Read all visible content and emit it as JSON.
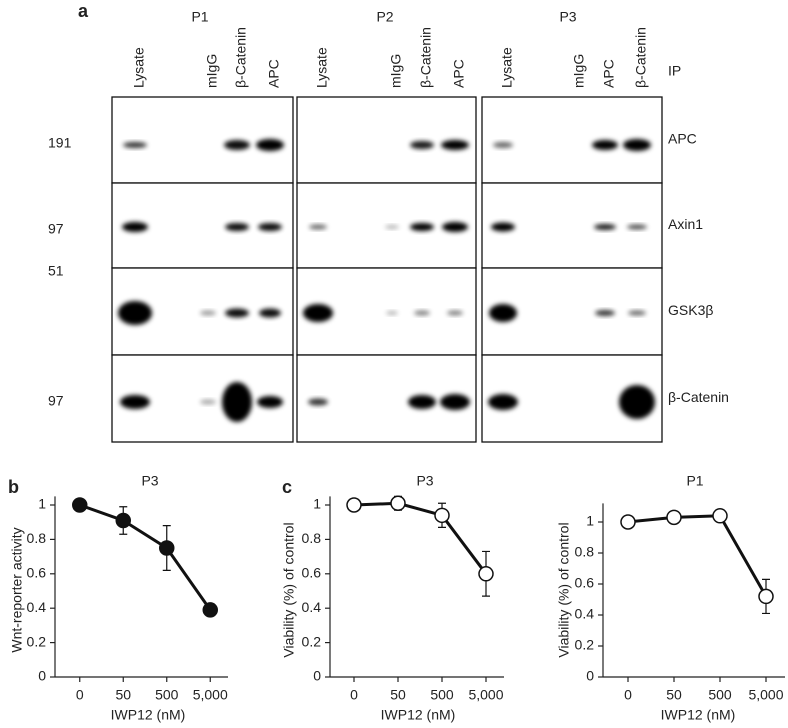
{
  "panel_a": {
    "label": "a",
    "ip_label": "IP",
    "groups": [
      {
        "name": "P1",
        "lanes": [
          "Lysate",
          "mIgG",
          "β-Catenin",
          "APC"
        ]
      },
      {
        "name": "P2",
        "lanes": [
          "Lysate",
          "mIgG",
          "β-Catenin",
          "APC"
        ]
      },
      {
        "name": "P3",
        "lanes": [
          "Lysate",
          "mIgG",
          "APC",
          "β-Catenin"
        ]
      }
    ],
    "rows": [
      {
        "marker": "191",
        "protein": "APC"
      },
      {
        "marker": "97",
        "protein": "Axin1"
      },
      {
        "marker": "51",
        "protein": "GSK3β"
      },
      {
        "marker": "97",
        "protein": "β-Catenin"
      }
    ]
  },
  "chart_data": [
    {
      "type": "line",
      "panel_label": "b",
      "title": "P3",
      "xlabel": "IWP12 (nM)",
      "ylabel": "Wnt-reporter activity",
      "categories": [
        "0",
        "50",
        "500",
        "5,000"
      ],
      "values": [
        1.0,
        0.91,
        0.75,
        0.39
      ],
      "errors": [
        0,
        0.08,
        0.13,
        0.02
      ],
      "color": "#111111",
      "marker_fill": "#111111",
      "ylim": [
        0,
        1.05
      ],
      "yticks": [
        0,
        0.2,
        0.4,
        0.6,
        0.8,
        1
      ]
    },
    {
      "type": "line",
      "panel_label": "c",
      "title": "P3",
      "xlabel": "IWP12 (nM)",
      "ylabel": "Viability (%) of control",
      "categories": [
        "0",
        "50",
        "500",
        "5,000"
      ],
      "values": [
        1.0,
        1.01,
        0.94,
        0.6
      ],
      "errors": [
        0,
        0.04,
        0.07,
        0.13
      ],
      "color": "#111111",
      "marker_fill": "#ffffff",
      "ylim": [
        0,
        1.05
      ],
      "yticks": [
        0,
        0.2,
        0.4,
        0.6,
        0.8,
        1
      ]
    },
    {
      "type": "line",
      "title": "P1",
      "xlabel": "IWP12 (nM)",
      "ylabel": "Viability (%) of control",
      "categories": [
        "0",
        "50",
        "500",
        "5,000"
      ],
      "values": [
        1.0,
        1.03,
        1.04,
        0.52
      ],
      "errors": [
        0,
        0,
        0,
        0.11
      ],
      "color": "#111111",
      "marker_fill": "#ffffff",
      "ylim": [
        0,
        1.12
      ],
      "yticks": [
        0,
        0.2,
        0.4,
        0.6,
        0.8,
        1
      ]
    }
  ]
}
